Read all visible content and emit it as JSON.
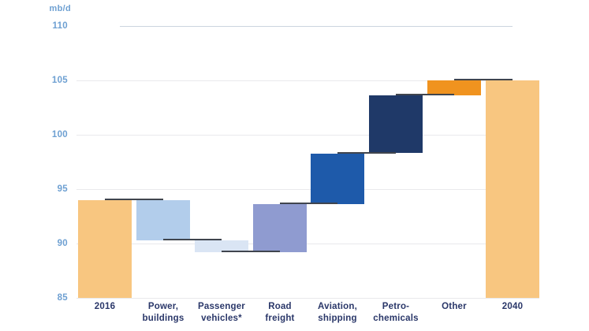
{
  "page": {
    "background": "#FFFFFF"
  },
  "chart_data": {
    "type": "waterfall",
    "title": "",
    "unit_label": "mb/d",
    "xlabel": "",
    "ylabel": "mb/d",
    "y_axis": {
      "min": 85,
      "max": 110,
      "ticks": [
        110,
        105,
        100,
        95,
        90,
        85
      ]
    },
    "grid": true,
    "legend": "none",
    "categories": [
      "2016",
      "Power, buildings",
      "Passenger vehicles*",
      "Road freight",
      "Aviation, shipping",
      "Petro-chemicals",
      "Other",
      "2040"
    ],
    "bars": [
      {
        "label": "2016",
        "label_lines": [
          "2016"
        ],
        "kind": "total",
        "value": 94,
        "color": "#F8C680"
      },
      {
        "label": "Power, buildings",
        "label_lines": [
          "Power,",
          "buildings"
        ],
        "kind": "decrease",
        "from": 94,
        "to": 90.3,
        "change": -3.7,
        "color": "#B2CDEB"
      },
      {
        "label": "Passenger vehicles*",
        "label_lines": [
          "Passenger",
          "vehicles*"
        ],
        "kind": "decrease",
        "from": 90.3,
        "to": 89.2,
        "change": -1.1,
        "color": "#DAE5F4"
      },
      {
        "label": "Road freight",
        "label_lines": [
          "Road",
          "freight"
        ],
        "kind": "increase",
        "from": 89.2,
        "to": 93.6,
        "change": 4.4,
        "color": "#8F9BD0"
      },
      {
        "label": "Aviation, shipping",
        "label_lines": [
          "Aviation,",
          "shipping"
        ],
        "kind": "increase",
        "from": 93.6,
        "to": 98.3,
        "change": 4.7,
        "color": "#1E5AAA"
      },
      {
        "label": "Petro-chemicals",
        "label_lines": [
          "Petro-",
          "chemicals"
        ],
        "kind": "increase",
        "from": 98.3,
        "to": 103.6,
        "change": 5.3,
        "color": "#1F3968"
      },
      {
        "label": "Other",
        "label_lines": [
          "Other"
        ],
        "kind": "increase",
        "from": 103.6,
        "to": 105,
        "change": 1.4,
        "color": "#F0931F"
      },
      {
        "label": "2040",
        "label_lines": [
          "2040"
        ],
        "kind": "total",
        "value": 105,
        "color": "#F8C680"
      }
    ],
    "colors": {
      "connector": "#40454E",
      "axis_labels": "#6EA0D2",
      "category_labels": "#2A3769",
      "gridline": "#E9E9EC",
      "top_gridline": "#CBD5DF"
    }
  }
}
